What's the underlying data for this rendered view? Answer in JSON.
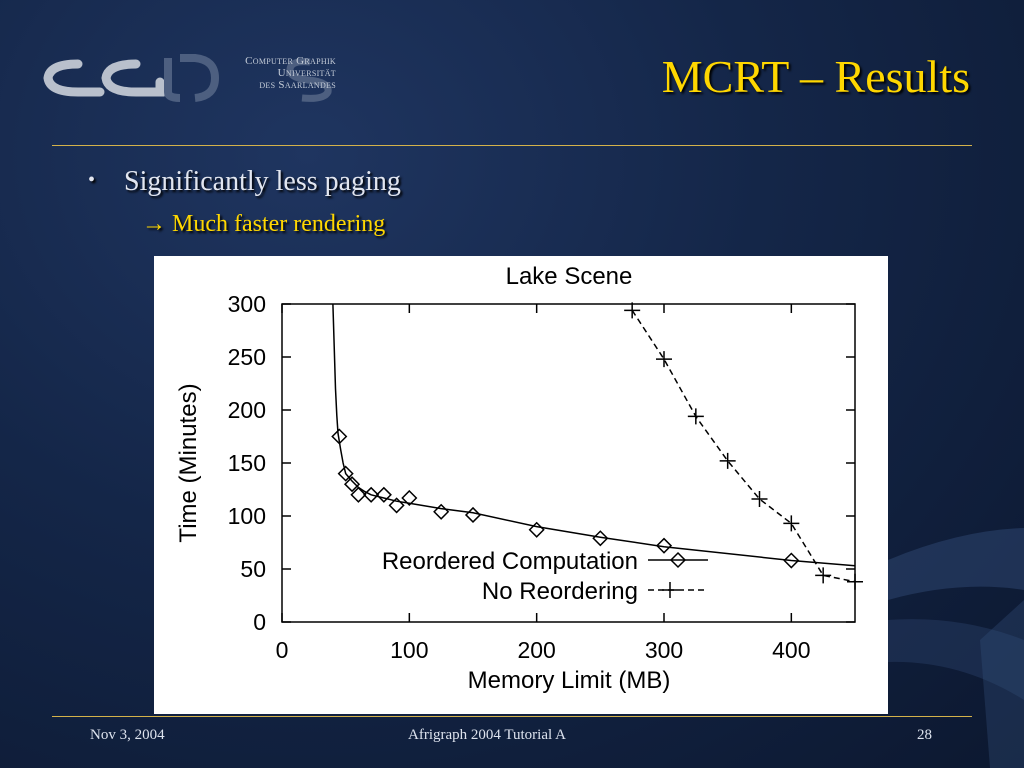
{
  "logo": {
    "mark": "CGUDS",
    "lines": [
      "Computer Graphik",
      "Universität",
      "des Saarlandes"
    ]
  },
  "slide": {
    "title": "MCRT – Results",
    "bullet": "Significantly less paging",
    "subbullet_arrow": "→",
    "subbullet": "Much faster rendering"
  },
  "footer": {
    "date": "Nov 3, 2004",
    "event": "Afrigraph 2004 Tutorial A",
    "page": "28"
  },
  "colors": {
    "title": "#ffd700",
    "rule": "#d4b24a",
    "background": "#142648"
  },
  "chart_data": {
    "type": "line",
    "title": "Lake Scene",
    "xlabel": "Memory Limit (MB)",
    "ylabel": "Time (Minutes)",
    "xlim": [
      0,
      450
    ],
    "ylim": [
      0,
      300
    ],
    "xticks": [
      0,
      100,
      200,
      300,
      400
    ],
    "yticks": [
      0,
      50,
      100,
      150,
      200,
      250,
      300
    ],
    "grid": false,
    "legend_position": "bottom-right",
    "series": [
      {
        "name": "Reordered Computation",
        "marker": "diamond",
        "line": "solid",
        "curve": [
          [
            40,
            300
          ],
          [
            41,
            260
          ],
          [
            42,
            220
          ],
          [
            43,
            195
          ],
          [
            44,
            178
          ],
          [
            46,
            163
          ],
          [
            48,
            150
          ],
          [
            50,
            140
          ],
          [
            55,
            133
          ],
          [
            60,
            127
          ],
          [
            65,
            123
          ],
          [
            70,
            120
          ],
          [
            80,
            117
          ],
          [
            90,
            114
          ],
          [
            100,
            112
          ],
          [
            125,
            107
          ],
          [
            150,
            103
          ],
          [
            200,
            90
          ],
          [
            250,
            80
          ],
          [
            300,
            71
          ],
          [
            400,
            58
          ],
          [
            450,
            53
          ]
        ],
        "points": [
          [
            45,
            175
          ],
          [
            50,
            140
          ],
          [
            55,
            130
          ],
          [
            60,
            120
          ],
          [
            70,
            120
          ],
          [
            80,
            120
          ],
          [
            90,
            110
          ],
          [
            100,
            117
          ],
          [
            125,
            104
          ],
          [
            150,
            101
          ],
          [
            200,
            87
          ],
          [
            250,
            79
          ],
          [
            300,
            72
          ],
          [
            400,
            58
          ]
        ]
      },
      {
        "name": "No Reordering",
        "marker": "plus",
        "line": "dashed",
        "points": [
          [
            275,
            294
          ],
          [
            300,
            248
          ],
          [
            325,
            194
          ],
          [
            350,
            152
          ],
          [
            375,
            116
          ],
          [
            400,
            93
          ],
          [
            425,
            44
          ],
          [
            450,
            38
          ]
        ]
      }
    ]
  }
}
